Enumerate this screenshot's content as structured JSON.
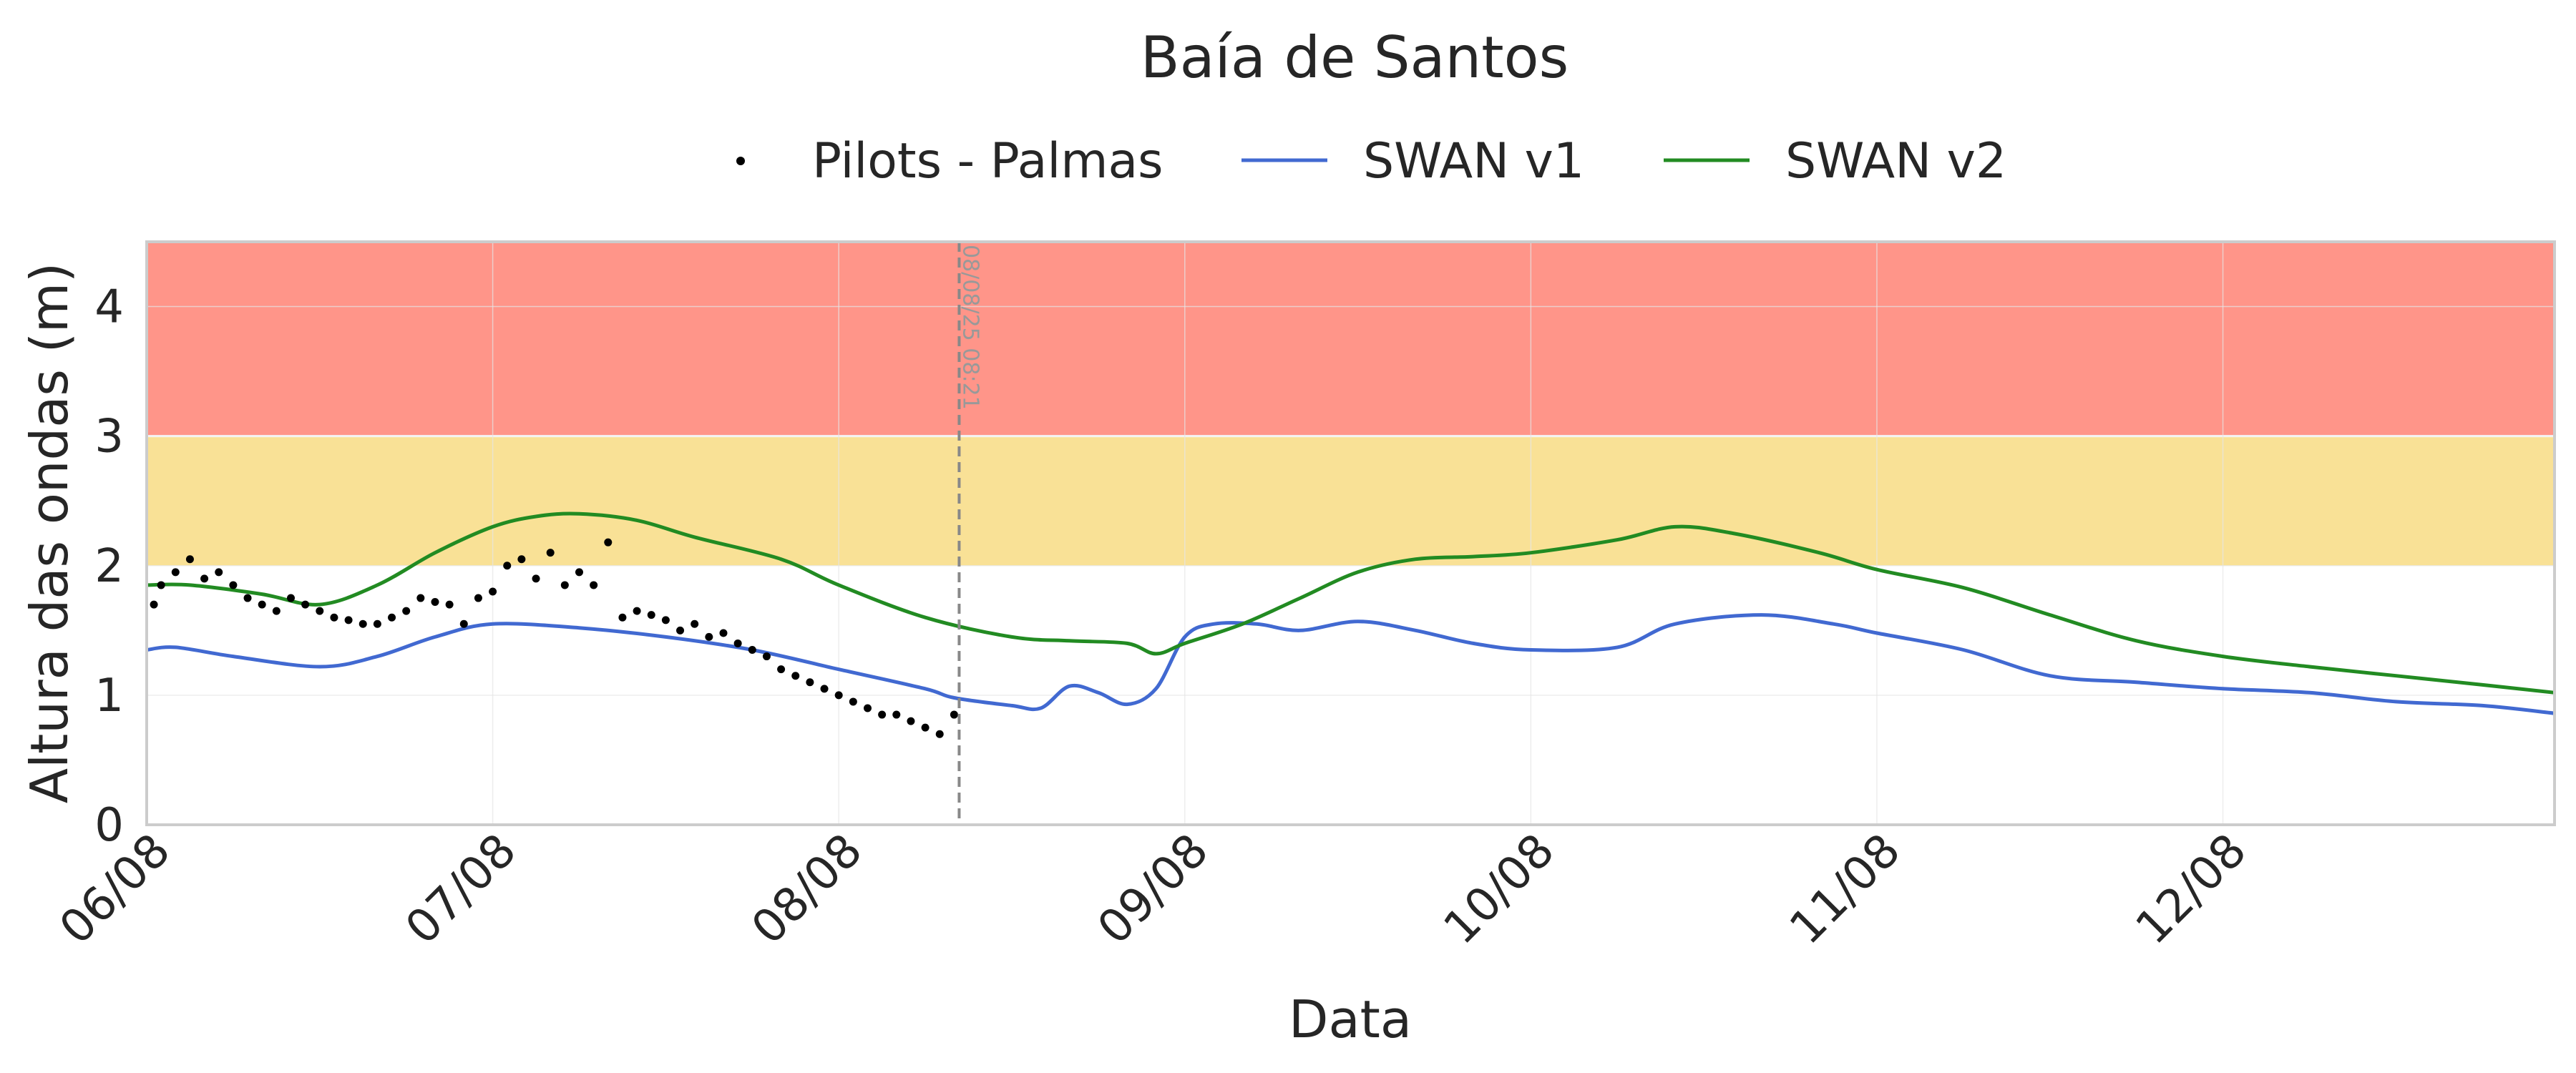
{
  "chart_data": {
    "type": "line",
    "title": "Baía de Santos",
    "xlabel": "Data",
    "ylabel": "Altura das ondas (m)",
    "ylim": [
      0,
      4.5
    ],
    "xlim": [
      "06/08 00:00",
      "12/08 23:00"
    ],
    "x_unit": "date (dd/mm hh:mm)",
    "xticks": [
      "06/08",
      "07/08",
      "08/08",
      "09/08",
      "10/08",
      "11/08",
      "12/08"
    ],
    "yticks": [
      0,
      1,
      2,
      3,
      4
    ],
    "grid": true,
    "legend_position": "top-center",
    "thresholds": [
      {
        "from": 2,
        "to": 3,
        "color": "#f9e196"
      },
      {
        "from": 3,
        "to": 4.5,
        "color": "#ff9589"
      }
    ],
    "marker_line": {
      "x": "08/08 08:21",
      "label": "08/08/25 08:21"
    },
    "series": [
      {
        "name": "Pilots - Palmas",
        "kind": "scatter",
        "color": "#000000",
        "x": [
          "06/08 00:30",
          "06/08 01:00",
          "06/08 02:00",
          "06/08 03:00",
          "06/08 04:00",
          "06/08 05:00",
          "06/08 06:00",
          "06/08 07:00",
          "06/08 08:00",
          "06/08 09:00",
          "06/08 10:00",
          "06/08 11:00",
          "06/08 12:00",
          "06/08 13:00",
          "06/08 14:00",
          "06/08 15:00",
          "06/08 16:00",
          "06/08 17:00",
          "06/08 18:00",
          "06/08 19:00",
          "06/08 20:00",
          "06/08 21:00",
          "06/08 22:00",
          "06/08 23:00",
          "07/08 00:00",
          "07/08 01:00",
          "07/08 02:00",
          "07/08 03:00",
          "07/08 04:00",
          "07/08 05:00",
          "07/08 06:00",
          "07/08 07:00",
          "07/08 08:00",
          "07/08 09:00",
          "07/08 10:00",
          "07/08 11:00",
          "07/08 12:00",
          "07/08 13:00",
          "07/08 14:00",
          "07/08 15:00",
          "07/08 16:00",
          "07/08 17:00",
          "07/08 18:00",
          "07/08 19:00",
          "07/08 20:00",
          "07/08 21:00",
          "07/08 22:00",
          "07/08 23:00",
          "08/08 00:00",
          "08/08 01:00",
          "08/08 02:00",
          "08/08 03:00",
          "08/08 04:00",
          "08/08 05:00",
          "08/08 06:00",
          "08/08 07:00",
          "08/08 08:00"
        ],
        "y": [
          1.7,
          1.85,
          1.95,
          2.05,
          1.9,
          1.95,
          1.85,
          1.75,
          1.7,
          1.65,
          1.75,
          1.7,
          1.65,
          1.6,
          1.58,
          1.55,
          1.55,
          1.6,
          1.65,
          1.75,
          1.72,
          1.7,
          1.55,
          1.75,
          1.8,
          2.0,
          2.05,
          1.9,
          2.1,
          1.85,
          1.95,
          1.85,
          2.18,
          1.6,
          1.65,
          1.62,
          1.58,
          1.5,
          1.55,
          1.45,
          1.48,
          1.4,
          1.35,
          1.3,
          1.2,
          1.15,
          1.1,
          1.05,
          1.0,
          0.95,
          0.9,
          0.85,
          0.85,
          0.8,
          0.75,
          0.7,
          0.85
        ]
      },
      {
        "name": "SWAN v1",
        "kind": "line",
        "color": "#4169d1",
        "x": [
          "06/08 00:00",
          "06/08 02:00",
          "06/08 06:00",
          "06/08 12:00",
          "06/08 16:00",
          "06/08 20:00",
          "07/08 00:00",
          "07/08 06:00",
          "07/08 12:00",
          "07/08 18:00",
          "08/08 00:00",
          "08/08 06:00",
          "08/08 08:00",
          "08/08 12:00",
          "08/08 14:00",
          "08/08 16:00",
          "08/08 18:00",
          "08/08 20:00",
          "08/08 22:00",
          "09/08 00:00",
          "09/08 02:00",
          "09/08 05:00",
          "09/08 08:00",
          "09/08 12:00",
          "09/08 16:00",
          "09/08 20:00",
          "10/08 00:00",
          "10/08 06:00",
          "10/08 10:00",
          "10/08 16:00",
          "10/08 21:00",
          "11/08 00:00",
          "11/08 06:00",
          "11/08 12:00",
          "11/08 18:00",
          "12/08 00:00",
          "12/08 06:00",
          "12/08 12:00",
          "12/08 18:00",
          "12/08 23:00"
        ],
        "y": [
          1.35,
          1.37,
          1.3,
          1.22,
          1.3,
          1.45,
          1.55,
          1.52,
          1.45,
          1.35,
          1.2,
          1.05,
          0.98,
          0.92,
          0.9,
          1.07,
          1.02,
          0.93,
          1.05,
          1.45,
          1.55,
          1.55,
          1.5,
          1.57,
          1.5,
          1.4,
          1.35,
          1.37,
          1.55,
          1.62,
          1.55,
          1.48,
          1.35,
          1.15,
          1.1,
          1.05,
          1.02,
          0.95,
          0.92,
          0.86
        ]
      },
      {
        "name": "SWAN v2",
        "kind": "line",
        "color": "#228b22",
        "x": [
          "06/08 00:00",
          "06/08 03:00",
          "06/08 08:00",
          "06/08 12:00",
          "06/08 16:00",
          "06/08 20:00",
          "07/08 00:00",
          "07/08 03:00",
          "07/08 06:00",
          "07/08 10:00",
          "07/08 14:00",
          "07/08 20:00",
          "08/08 00:00",
          "08/08 06:00",
          "08/08 12:00",
          "08/08 16:00",
          "08/08 20:00",
          "08/08 22:00",
          "09/08 00:00",
          "09/08 04:00",
          "09/08 08:00",
          "09/08 12:00",
          "09/08 16:00",
          "09/08 20:00",
          "10/08 00:00",
          "10/08 06:00",
          "10/08 10:00",
          "10/08 14:00",
          "10/08 20:00",
          "11/08 00:00",
          "11/08 06:00",
          "11/08 12:00",
          "11/08 18:00",
          "12/08 00:00",
          "12/08 06:00",
          "12/08 12:00",
          "12/08 18:00",
          "12/08 23:00"
        ],
        "y": [
          1.85,
          1.85,
          1.78,
          1.7,
          1.85,
          2.1,
          2.3,
          2.38,
          2.4,
          2.35,
          2.22,
          2.05,
          1.85,
          1.6,
          1.45,
          1.42,
          1.4,
          1.32,
          1.4,
          1.55,
          1.75,
          1.95,
          2.05,
          2.07,
          2.1,
          2.2,
          2.3,
          2.25,
          2.1,
          1.97,
          1.83,
          1.62,
          1.42,
          1.3,
          1.22,
          1.15,
          1.08,
          1.02
        ]
      }
    ]
  }
}
